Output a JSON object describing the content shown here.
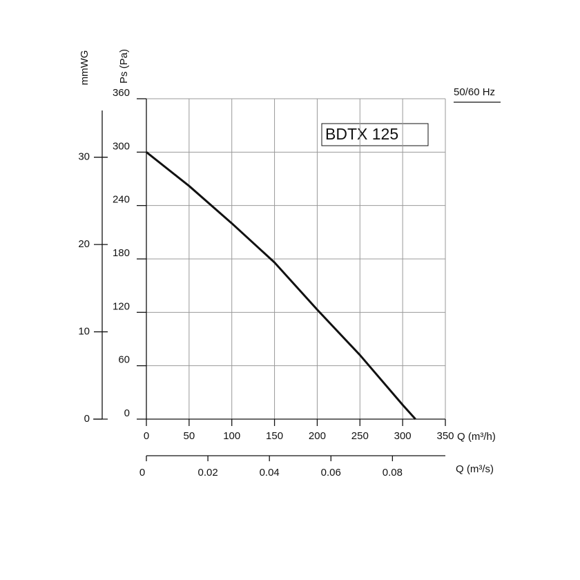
{
  "chart_data": {
    "type": "line",
    "title": "BDTX 125",
    "subtitle": "50/60 Hz",
    "x_label": "Q (m³/h)",
    "y_label": "Ps (Pa)",
    "y2_label": "mmWG",
    "x2_label": "Q (m³/s)",
    "x": [
      0,
      50,
      100,
      150,
      200,
      250,
      300,
      315
    ],
    "values": [
      300,
      262,
      220,
      176,
      123,
      72,
      16,
      0
    ],
    "color": "#111111",
    "xlim": [
      0,
      350
    ],
    "xticks": [
      0,
      50,
      100,
      150,
      200,
      250,
      300,
      350
    ],
    "ylim": [
      0,
      360
    ],
    "yticks": [
      0,
      60,
      120,
      180,
      240,
      300,
      360
    ],
    "y2lim": [
      0,
      36.7
    ],
    "y2ticks": [
      0,
      10,
      20,
      30
    ],
    "x2lim": [
      0,
      0.0972
    ],
    "x2ticks": [
      0,
      0.02,
      0.04,
      0.06,
      0.08
    ],
    "grid": true
  }
}
